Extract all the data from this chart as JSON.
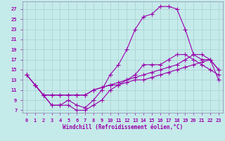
{
  "xlabel": "Windchill (Refroidissement éolien,°C)",
  "xlim": [
    -0.5,
    23.5
  ],
  "ylim": [
    6.5,
    28.5
  ],
  "xticks": [
    0,
    1,
    2,
    3,
    4,
    5,
    6,
    7,
    8,
    9,
    10,
    11,
    12,
    13,
    14,
    15,
    16,
    17,
    18,
    19,
    20,
    21,
    22,
    23
  ],
  "yticks": [
    7,
    9,
    11,
    13,
    15,
    17,
    19,
    21,
    23,
    25,
    27
  ],
  "bg_color": "#c5eaea",
  "line_color": "#9900aa",
  "grid_color": "#a8d0d0",
  "line1_x": [
    0,
    1,
    2,
    3,
    4,
    5,
    6,
    7,
    8,
    9,
    10,
    11,
    12,
    13,
    14,
    15,
    16,
    17,
    18,
    19,
    20,
    21,
    22,
    23
  ],
  "line1_y": [
    14,
    12,
    10,
    8,
    8,
    8,
    7,
    7,
    8,
    9,
    11,
    12,
    13,
    14,
    16,
    16,
    16,
    17,
    18,
    18,
    17,
    16,
    15,
    14
  ],
  "line2_x": [
    0,
    1,
    2,
    3,
    4,
    5,
    6,
    7,
    8,
    9,
    10,
    11,
    12,
    13,
    14,
    15,
    16,
    17,
    18,
    19,
    20,
    21,
    22,
    23
  ],
  "line2_y": [
    14,
    12,
    10,
    8,
    8,
    9,
    8,
    7.5,
    9,
    11,
    14,
    16,
    19,
    23,
    25.5,
    26,
    27.5,
    27.5,
    27,
    23,
    18,
    17,
    17,
    15
  ],
  "line3_x": [
    0,
    1,
    2,
    3,
    4,
    5,
    6,
    7,
    8,
    9,
    10,
    11,
    12,
    13,
    14,
    15,
    16,
    17,
    18,
    19,
    20,
    21,
    22,
    23
  ],
  "line3_y": [
    14,
    12,
    10,
    10,
    10,
    10,
    10,
    10,
    11,
    11.5,
    12,
    12.5,
    13,
    13.5,
    14,
    14.5,
    15,
    15.5,
    16,
    17,
    18,
    18,
    17,
    15
  ],
  "line4_x": [
    1,
    2,
    3,
    4,
    5,
    6,
    7,
    8,
    9,
    10,
    11,
    12,
    13,
    14,
    15,
    16,
    17,
    18,
    19,
    20,
    21,
    22,
    23
  ],
  "line4_y": [
    12,
    10,
    10,
    10,
    10,
    10,
    10,
    11,
    11.5,
    12,
    12,
    12.5,
    13,
    13,
    13.5,
    14,
    14.5,
    15,
    15.5,
    16,
    16.5,
    17,
    13
  ]
}
